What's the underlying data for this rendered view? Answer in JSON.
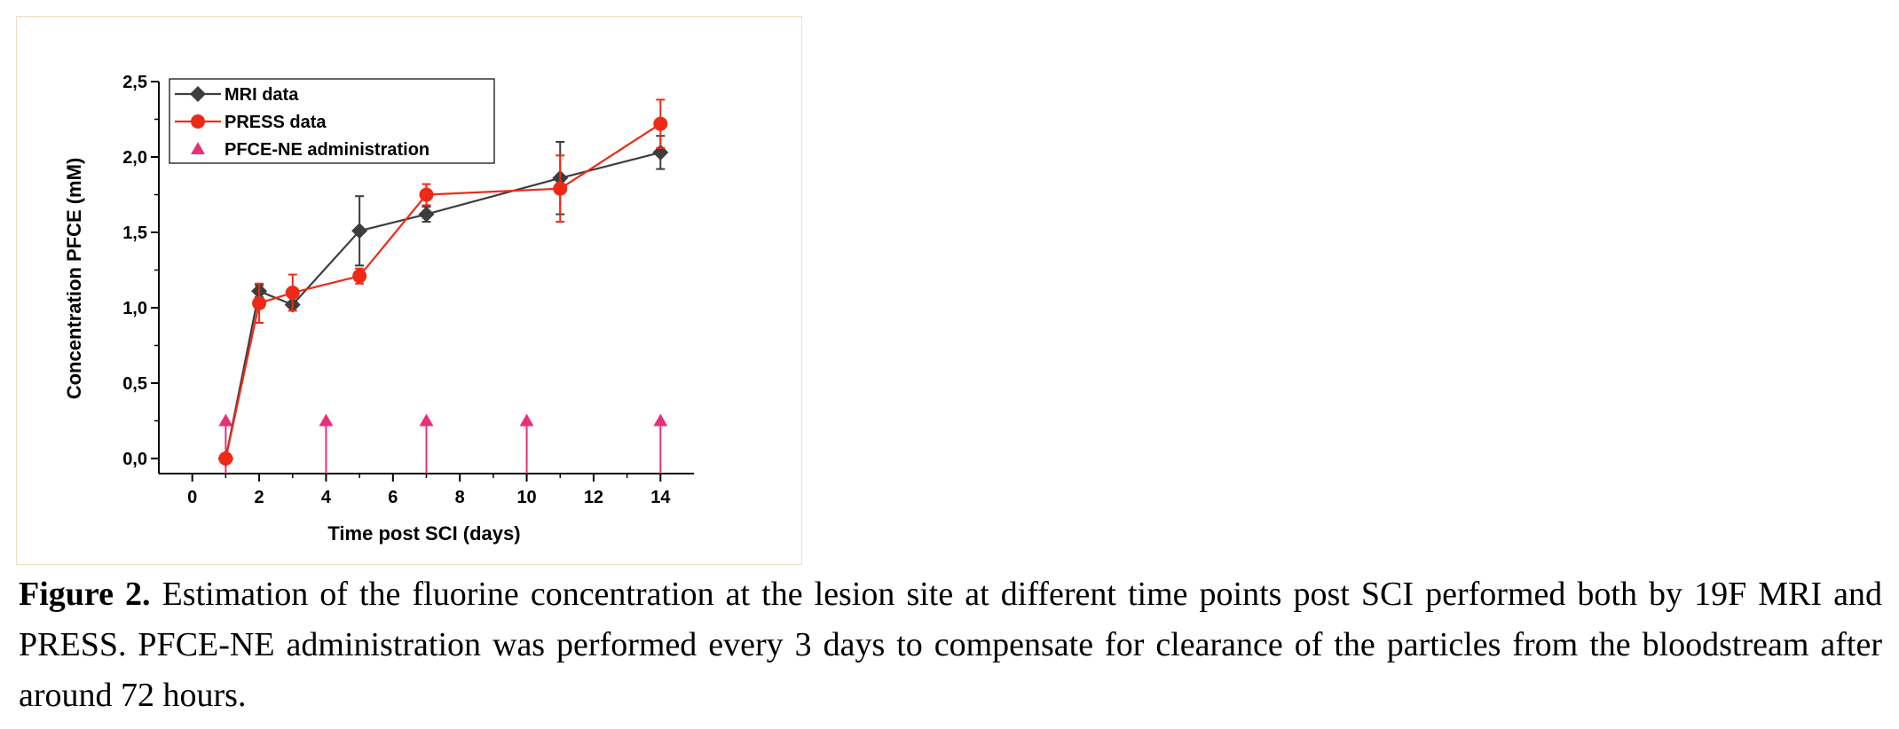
{
  "chart_data": {
    "type": "line",
    "xlabel": "Time post SCI (days)",
    "ylabel": "Concentration PFCE (mM)",
    "xlim": [
      -1,
      15
    ],
    "ylim": [
      -0.1,
      2.5
    ],
    "x_ticks": [
      0,
      2,
      4,
      6,
      8,
      10,
      12,
      14
    ],
    "x_tick_labels": [
      "0",
      "2",
      "4",
      "6",
      "8",
      "10",
      "12",
      "14"
    ],
    "y_ticks": [
      0.0,
      0.5,
      1.0,
      1.5,
      2.0,
      2.5
    ],
    "y_tick_labels": [
      "0,0",
      "0,5",
      "1,0",
      "1,5",
      "2,0",
      "2,5"
    ],
    "legend_position": "top-left",
    "grid": false,
    "series": [
      {
        "name": "MRI data",
        "color": "#3d3d3d",
        "marker": "diamond",
        "x": [
          1,
          2,
          3,
          5,
          7,
          11,
          14
        ],
        "y": [
          0.0,
          1.11,
          1.02,
          1.51,
          1.62,
          1.86,
          2.03
        ],
        "err": [
          0.0,
          0.04,
          0.02,
          0.23,
          0.05,
          0.24,
          0.11
        ]
      },
      {
        "name": "PRESS data",
        "color": "#ee2a16",
        "marker": "circle",
        "x": [
          1,
          2,
          3,
          5,
          7,
          11,
          14
        ],
        "y": [
          0.0,
          1.03,
          1.1,
          1.21,
          1.75,
          1.79,
          2.22
        ],
        "err": [
          0.0,
          0.13,
          0.12,
          0.05,
          0.07,
          0.22,
          0.16
        ]
      }
    ],
    "markers_series": {
      "name": "PFCE-NE administration",
      "color": "#e8307a",
      "marker": "triangle",
      "x": [
        1,
        4,
        7,
        10,
        14
      ],
      "y": [
        0.25,
        0.25,
        0.25,
        0.25,
        0.25
      ]
    }
  },
  "caption": {
    "label": "Figure 2.",
    "text": " Estimation of the fluorine concentration at the lesion site at different time points post SCI performed both by 19F MRI and PRESS. PFCE-NE administration was performed every 3 days to compensate for clearance of the particles from the bloodstream after around 72 hours."
  }
}
